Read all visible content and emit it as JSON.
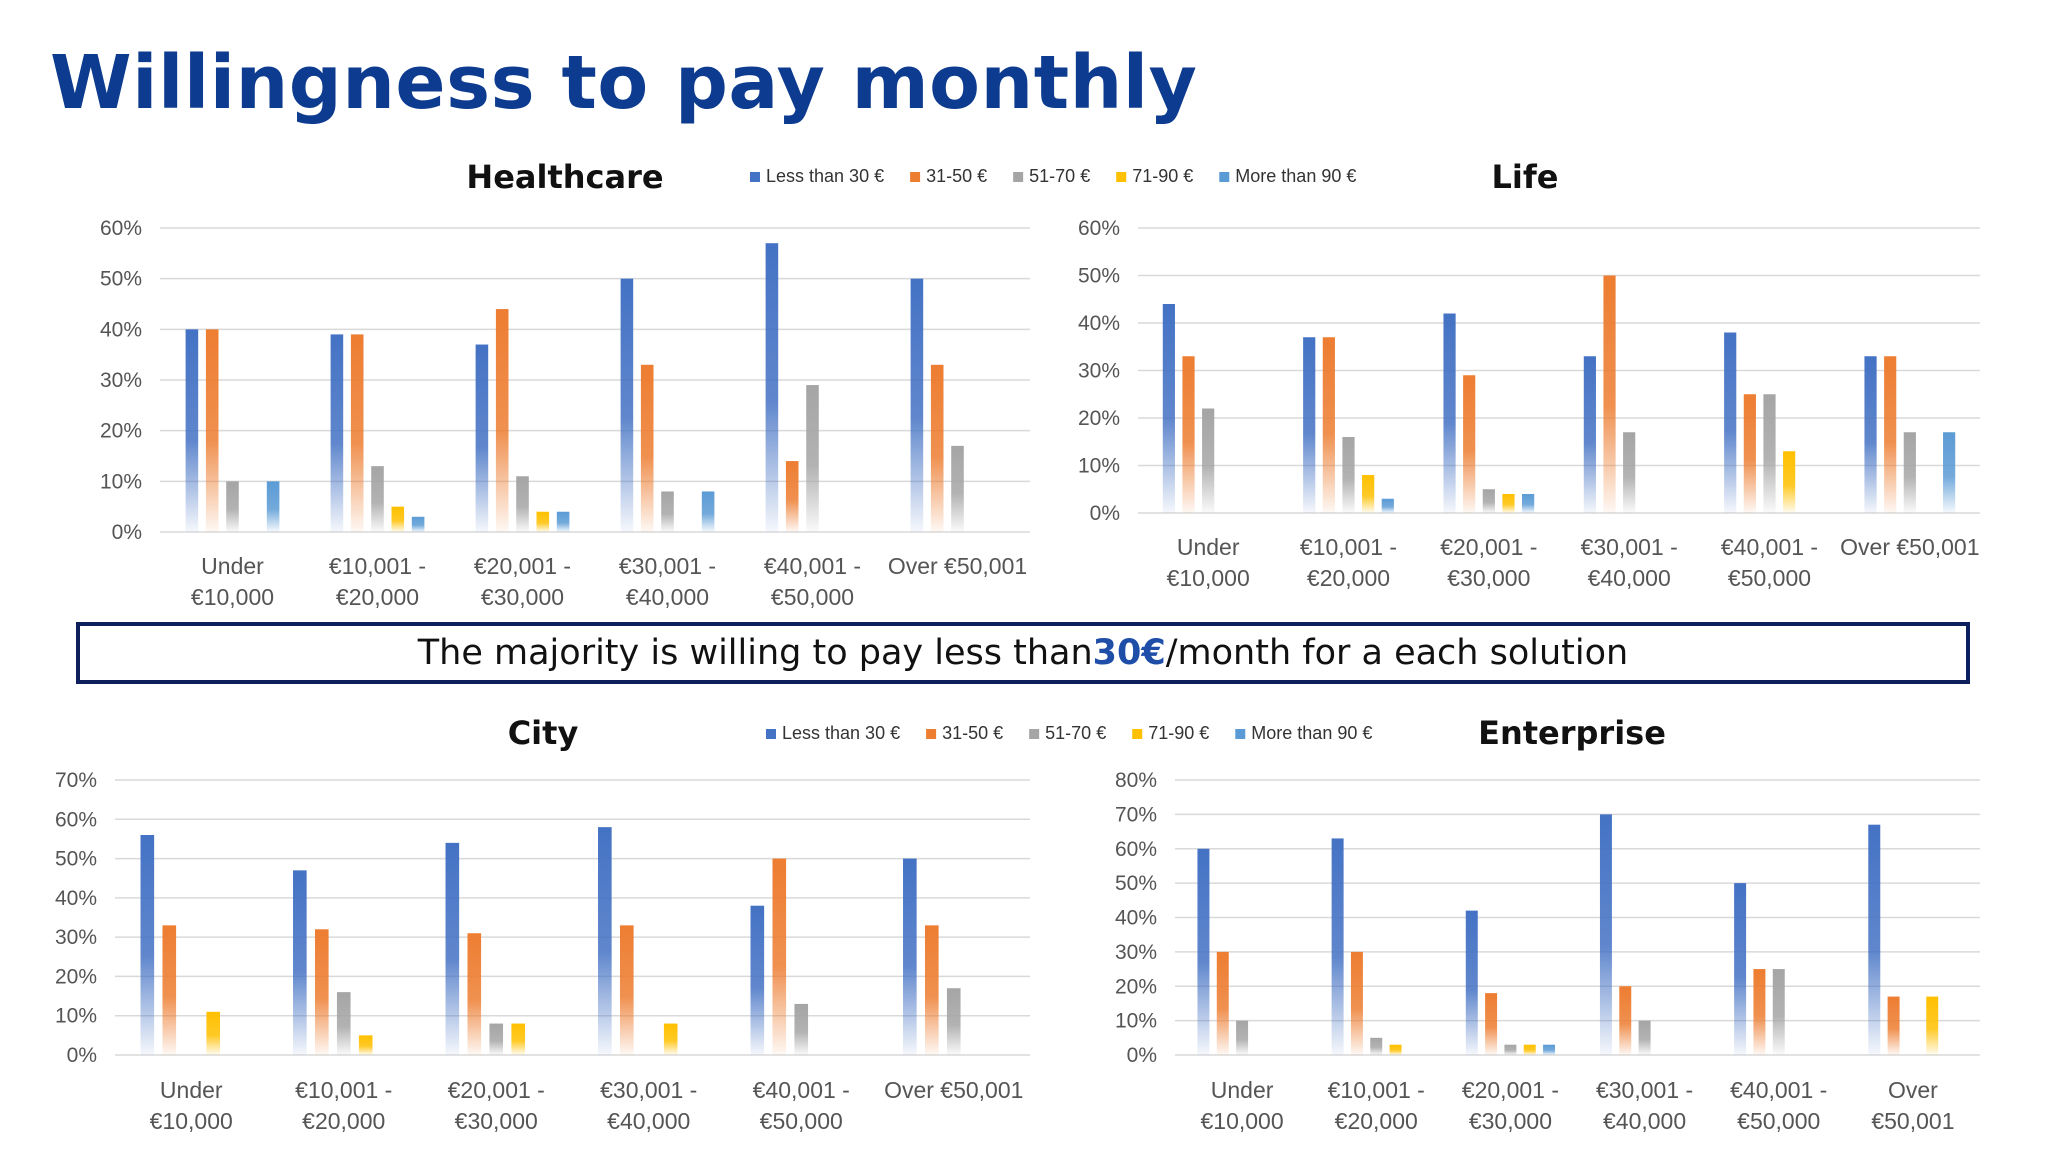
{
  "title": "Willingness to pay monthly",
  "callout": {
    "before": "The majority is willing to pay less than ",
    "highlight": "30€",
    "after": "/month for a each solution"
  },
  "colors": {
    "Less than 30 €": "#4472c4",
    "31-50 €": "#ed7d31",
    "51-70 €": "#a5a5a5",
    "71-90 €": "#ffc000",
    "More than 90 €": "#5b9bd5"
  },
  "chart_data": [
    {
      "id": "healthcare",
      "type": "bar",
      "title": "Healthcare",
      "legend": [
        "Less than 30 €",
        "31-50 €",
        "51-70 €",
        "71-90 €",
        "More than 90 €"
      ],
      "legend_position": "top-right",
      "categories": [
        [
          "Under",
          "€10,000"
        ],
        [
          "€10,001 -",
          "€20,000"
        ],
        [
          "€20,001 -",
          "€30,000"
        ],
        [
          "€30,001 -",
          "€40,000"
        ],
        [
          "€40,001 -",
          "€50,000"
        ],
        [
          "Over €50,001"
        ]
      ],
      "ylim": [
        0,
        60
      ],
      "ystep": 10,
      "ytick_suffix": "%",
      "series": [
        {
          "name": "Less than 30 €",
          "values": [
            40,
            39,
            37,
            50,
            57,
            50
          ]
        },
        {
          "name": "31-50 €",
          "values": [
            40,
            39,
            44,
            33,
            14,
            33
          ]
        },
        {
          "name": "51-70 €",
          "values": [
            10,
            13,
            11,
            8,
            29,
            17
          ]
        },
        {
          "name": "71-90 €",
          "values": [
            0,
            5,
            4,
            0,
            0,
            0
          ]
        },
        {
          "name": "More than 90 €",
          "values": [
            10,
            3,
            4,
            8,
            0,
            0
          ]
        }
      ]
    },
    {
      "id": "life",
      "type": "bar",
      "title": "Life",
      "legend": [],
      "categories": [
        [
          "Under",
          "€10,000"
        ],
        [
          "€10,001 -",
          "€20,000"
        ],
        [
          "€20,001 -",
          "€30,000"
        ],
        [
          "€30,001 -",
          "€40,000"
        ],
        [
          "€40,001 -",
          "€50,000"
        ],
        [
          "Over €50,001"
        ]
      ],
      "ylim": [
        0,
        60
      ],
      "ystep": 10,
      "ytick_suffix": "%",
      "series": [
        {
          "name": "Less than 30 €",
          "values": [
            44,
            37,
            42,
            33,
            38,
            33
          ]
        },
        {
          "name": "31-50 €",
          "values": [
            33,
            37,
            29,
            50,
            25,
            33
          ]
        },
        {
          "name": "51-70 €",
          "values": [
            22,
            16,
            5,
            17,
            25,
            17
          ]
        },
        {
          "name": "71-90 €",
          "values": [
            0,
            8,
            4,
            0,
            13,
            0
          ]
        },
        {
          "name": "More than 90 €",
          "values": [
            0,
            3,
            4,
            0,
            0,
            17
          ]
        }
      ]
    },
    {
      "id": "city",
      "type": "bar",
      "title": "City",
      "legend": [
        "Less than 30 €",
        "31-50 €",
        "51-70 €",
        "71-90 €",
        "More than 90 €"
      ],
      "legend_position": "top-right",
      "categories": [
        [
          "Under",
          "€10,000"
        ],
        [
          "€10,001 -",
          "€20,000"
        ],
        [
          "€20,001 -",
          "€30,000"
        ],
        [
          "€30,001 -",
          "€40,000"
        ],
        [
          "€40,001 -",
          "€50,000"
        ],
        [
          "Over €50,001"
        ]
      ],
      "ylim": [
        0,
        70
      ],
      "ystep": 10,
      "ytick_suffix": "%",
      "series": [
        {
          "name": "Less than 30 €",
          "values": [
            56,
            47,
            54,
            58,
            38,
            50
          ]
        },
        {
          "name": "31-50 €",
          "values": [
            33,
            32,
            31,
            33,
            50,
            33
          ]
        },
        {
          "name": "51-70 €",
          "values": [
            0,
            16,
            8,
            0,
            13,
            17
          ]
        },
        {
          "name": "71-90 €",
          "values": [
            11,
            5,
            8,
            8,
            0,
            0
          ]
        },
        {
          "name": "More than 90 €",
          "values": [
            0,
            0,
            0,
            0,
            0,
            0
          ]
        }
      ]
    },
    {
      "id": "enterprise",
      "type": "bar",
      "title": "Enterprise",
      "legend": [],
      "categories": [
        [
          "Under",
          "€10,000"
        ],
        [
          "€10,001 -",
          "€20,000"
        ],
        [
          "€20,001 -",
          "€30,000"
        ],
        [
          "€30,001 -",
          "€40,000"
        ],
        [
          "€40,001 -",
          "€50,000"
        ],
        [
          "Over",
          "€50,001"
        ]
      ],
      "ylim": [
        0,
        80
      ],
      "ystep": 10,
      "ytick_suffix": "%",
      "series": [
        {
          "name": "Less than 30 €",
          "values": [
            60,
            63,
            42,
            70,
            50,
            67
          ]
        },
        {
          "name": "31-50 €",
          "values": [
            30,
            30,
            18,
            20,
            25,
            17
          ]
        },
        {
          "name": "51-70 €",
          "values": [
            10,
            5,
            3,
            10,
            25,
            0
          ]
        },
        {
          "name": "71-90 €",
          "values": [
            0,
            3,
            3,
            0,
            0,
            17
          ]
        },
        {
          "name": "More than 90 €",
          "values": [
            0,
            0,
            3,
            0,
            0,
            0
          ]
        }
      ]
    }
  ]
}
